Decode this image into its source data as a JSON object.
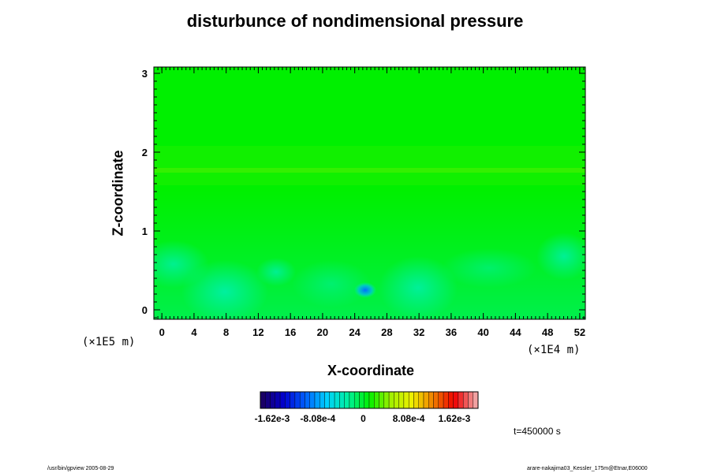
{
  "chart_data": {
    "type": "heatmap",
    "title": "disturbunce of nondimensional pressure",
    "xlabel": "X-coordinate",
    "ylabel": "Z-coordinate",
    "x_ticks": [
      "0",
      "4",
      "8",
      "12",
      "16",
      "20",
      "24",
      "28",
      "32",
      "36",
      "40",
      "44",
      "48",
      "52"
    ],
    "y_ticks": [
      "0",
      "1",
      "2",
      "3"
    ],
    "xlim": [
      -1,
      52.7
    ],
    "ylim": [
      -0.12,
      3.08
    ],
    "x_scale_label": "(×1E4 m)",
    "y_scale_label": "(×1E5 m)",
    "field_background_color": "#00f000",
    "colorbar": {
      "min": -0.00162,
      "max": 0.00162,
      "tick_labels": [
        "-1.62e-3",
        "-8.08e-4",
        "0",
        "8.08e-4",
        "1.62e-3"
      ],
      "tick_values": [
        -0.00162,
        -0.000808,
        0,
        0.000808,
        0.00162
      ],
      "colormap": [
        "#1a0066",
        "#0000d0",
        "#0060ff",
        "#00d0ff",
        "#00f0a0",
        "#00f000",
        "#a0f000",
        "#f0f000",
        "#f08000",
        "#f00000",
        "#f0a0a0"
      ]
    },
    "annotations": [
      {
        "text": "t=450000 s"
      }
    ]
  },
  "footer": {
    "left": "/usr/bin/gpview 2005-08-29",
    "right": "arare-nakajima03_Kessler_175m@Etnar,E06000"
  }
}
